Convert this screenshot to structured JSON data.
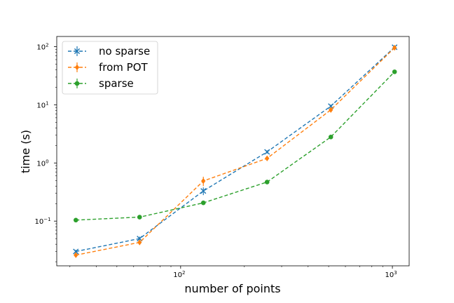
{
  "chart_data": {
    "type": "line",
    "title": "",
    "xlabel": "number of points",
    "ylabel": "time (s)",
    "xscale": "log",
    "yscale": "log",
    "xlim": [
      26,
      1200
    ],
    "ylim": [
      0.017,
      150
    ],
    "grid": false,
    "legend_position": "top-left",
    "x_ticks": [
      {
        "value": 100,
        "base": "10",
        "exp": "2"
      },
      {
        "value": 1000,
        "base": "10",
        "exp": "3"
      }
    ],
    "y_ticks": [
      {
        "value": 0.1,
        "base": "10",
        "exp": "−1"
      },
      {
        "value": 1,
        "base": "10",
        "exp": "0"
      },
      {
        "value": 10,
        "base": "10",
        "exp": "1"
      },
      {
        "value": 100,
        "base": "10",
        "exp": "2"
      }
    ],
    "x": [
      32,
      64,
      128,
      256,
      512,
      1024
    ],
    "series": [
      {
        "name": "no sparse",
        "color": "#1f77b4",
        "marker": "x",
        "values": [
          0.03,
          0.05,
          0.33,
          1.55,
          9.5,
          98
        ],
        "errors": [
          0.002,
          0.004,
          0.05,
          0.1,
          0.6,
          6
        ]
      },
      {
        "name": "from POT",
        "color": "#ff7f0e",
        "marker": "diamond",
        "values": [
          0.026,
          0.043,
          0.49,
          1.2,
          8.2,
          96
        ],
        "errors": [
          0.002,
          0.004,
          0.09,
          0.1,
          0.5,
          5
        ]
      },
      {
        "name": "sparse",
        "color": "#2ca02c",
        "marker": "circle",
        "values": [
          0.104,
          0.117,
          0.206,
          0.47,
          2.8,
          37
        ],
        "errors": [
          0.004,
          0.004,
          0.008,
          0.02,
          0.1,
          1.5
        ]
      }
    ]
  }
}
